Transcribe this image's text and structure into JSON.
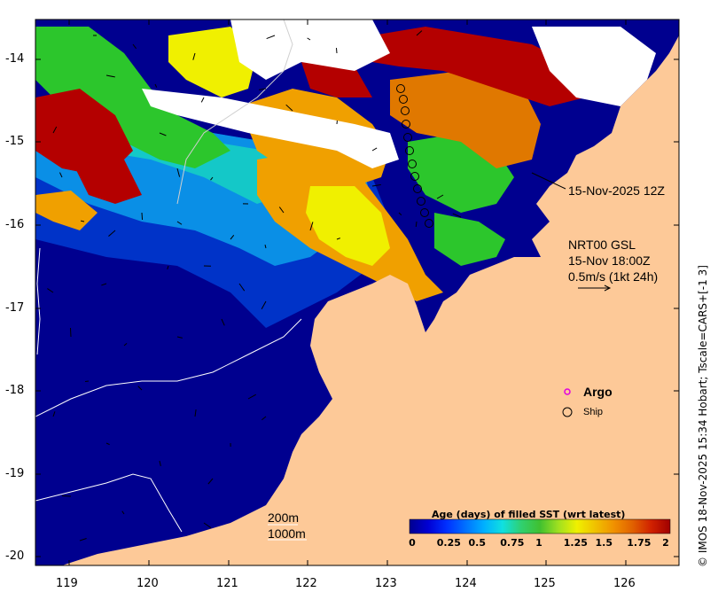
{
  "map": {
    "lat_ticks": [
      "-14",
      "-15",
      "-16",
      "-17",
      "-18",
      "-19",
      "-20"
    ],
    "lon_ticks": [
      "119",
      "120",
      "121",
      "122",
      "123",
      "124",
      "125",
      "126"
    ],
    "colors": {
      "land": "#fdc998",
      "deep": "#00008f",
      "sea_old": "#0033c8",
      "sea_mid": "#0a8fe6",
      "teal": "#14c8c8",
      "green": "#2cc62c",
      "yellow": "#f0f000",
      "orange": "#f0a000",
      "dark_orange": "#e07800",
      "red": "#b40000",
      "no_data": "#ffffff"
    }
  },
  "annotations": {
    "track_time": "15-Nov-2025 12Z",
    "product": "NRT00 GSL",
    "product_time": "15-Nov 18:00Z",
    "vector_scale": "0.5m/s (1kt 24h)",
    "isobath_1": "200m",
    "isobath_2": "1000m"
  },
  "legend": {
    "argo_label": "Argo",
    "ship_label": "Ship",
    "colorbar_title": "Age (days) of filled SST (wrt latest)",
    "colorbar_ticks": [
      "0",
      "0.25",
      "0.5",
      "0.75",
      "1",
      "1.25",
      "1.5",
      "1.75",
      "2"
    ],
    "colorbar_colors": [
      "#00008f",
      "#0000d4",
      "#0030ff",
      "#0070ff",
      "#00b0ff",
      "#10e0e0",
      "#30d070",
      "#40c030",
      "#a0e020",
      "#f0f000",
      "#f0c000",
      "#f09000",
      "#e06000",
      "#d02000",
      "#a00000"
    ]
  },
  "credit": "© IMOS 18-Nov-2025 15:34 Hobart; Tscale=CARS+[-1 3]"
}
